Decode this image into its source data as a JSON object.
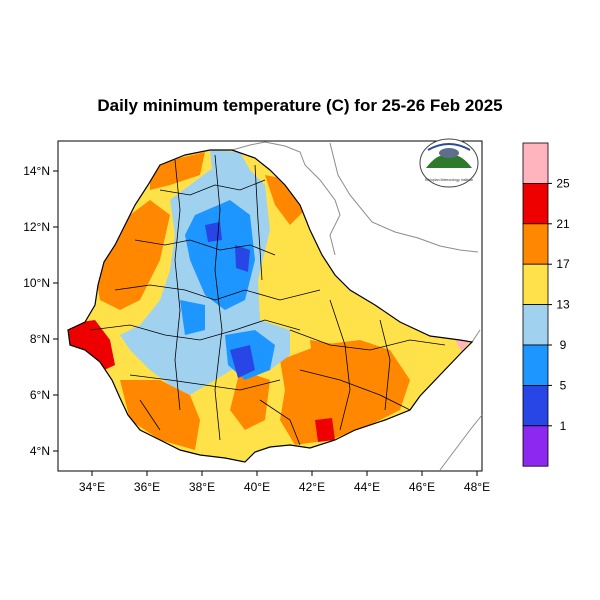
{
  "title": "Daily minimum temperature (C) for 25-26 Feb 2025",
  "x_ticks": [
    "34°E",
    "36°E",
    "38°E",
    "40°E",
    "42°E",
    "44°E",
    "46°E",
    "48°E"
  ],
  "y_ticks": [
    "14°N",
    "12°N",
    "10°N",
    "8°N",
    "6°N",
    "4°N"
  ],
  "legend": {
    "labels": [
      "25",
      "21",
      "17",
      "13",
      "9",
      "5",
      "1"
    ],
    "colors": [
      "#ffb4be",
      "#ee0000",
      "#ff8800",
      "#ffe24a",
      "#a0d2f0",
      "#1e96ff",
      "#2846e6",
      "#8c28f0"
    ]
  },
  "logo_text": "Ethiopian Meteorology Institute",
  "colors": {
    "frame": "#000000",
    "border": "#8c8c8c",
    "region": "#000000"
  }
}
